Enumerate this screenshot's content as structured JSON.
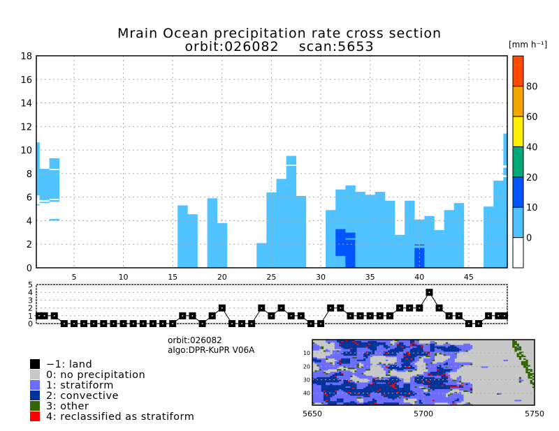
{
  "title": {
    "line1": "Mrain Ocean precipitation rate cross section",
    "line2": "orbit:026082    scan:5653"
  },
  "colorbar": {
    "unit": "[mm h⁻¹]",
    "bins": [
      {
        "from": null,
        "to": 0,
        "color": "#FFFFFF"
      },
      {
        "from": 0,
        "to": 10,
        "color": "#4FC3FF"
      },
      {
        "from": 10,
        "to": 20,
        "color": "#0055FF"
      },
      {
        "from": 20,
        "to": 40,
        "color": "#00AA77"
      },
      {
        "from": 40,
        "to": 60,
        "color": "#FFEE00"
      },
      {
        "from": 60,
        "to": 80,
        "color": "#F5A500"
      },
      {
        "from": 80,
        "to": null,
        "color": "#FF4A00"
      }
    ],
    "labels": [
      "0",
      "10",
      "20",
      "40",
      "60",
      "80"
    ]
  },
  "chart_data": [
    {
      "type": "bar",
      "description_of_encoding": "segments are [bottom, top, rate-bin lower bound in mm/h]",
      "xlim": [
        1.18,
        48.9
      ],
      "ylim": [
        0,
        18
      ],
      "xticks": [
        "5",
        "10",
        "15",
        "20",
        "25",
        "30",
        "35",
        "40",
        "45"
      ],
      "yticks": [
        "0",
        "2",
        "4",
        "6",
        "8",
        "10",
        "12",
        "14",
        "16",
        "18"
      ],
      "grid": true,
      "columns": [
        {
          "x": 1,
          "segments": [
            [
              5.3,
              5.4,
              0
            ],
            [
              6.15,
              10.65,
              0
            ]
          ]
        },
        {
          "x": 2,
          "segments": [
            [
              5.5,
              5.6,
              0
            ],
            [
              5.75,
              8.4,
              0
            ]
          ]
        },
        {
          "x": 3,
          "segments": [
            [
              4.0,
              4.15,
              0
            ],
            [
              5.6,
              5.75,
              0
            ],
            [
              5.85,
              8.3,
              0
            ],
            [
              8.4,
              9.3,
              0
            ]
          ]
        },
        {
          "x": 16,
          "segments": [
            [
              0,
              5.3,
              0
            ]
          ]
        },
        {
          "x": 17,
          "segments": [
            [
              0,
              4.55,
              0
            ]
          ]
        },
        {
          "x": 19,
          "segments": [
            [
              0,
              5.9,
              0
            ]
          ]
        },
        {
          "x": 20,
          "segments": [
            [
              0,
              3.8,
              0
            ]
          ]
        },
        {
          "x": 24,
          "segments": [
            [
              0,
              2.1,
              0
            ]
          ]
        },
        {
          "x": 25,
          "segments": [
            [
              0,
              6.4,
              0
            ]
          ]
        },
        {
          "x": 26,
          "segments": [
            [
              0,
              7.55,
              0
            ]
          ]
        },
        {
          "x": 27,
          "segments": [
            [
              0,
              8.65,
              0
            ],
            [
              8.75,
              9.5,
              0
            ]
          ]
        },
        {
          "x": 28,
          "segments": [
            [
              0,
              6.1,
              0
            ]
          ]
        },
        {
          "x": 31,
          "segments": [
            [
              0,
              4.9,
              0
            ]
          ]
        },
        {
          "x": 32,
          "segments": [
            [
              0,
              1.0,
              0
            ],
            [
              1.0,
              3.3,
              10
            ],
            [
              3.3,
              6.65,
              0
            ]
          ]
        },
        {
          "x": 33,
          "segments": [
            [
              0,
              2.4,
              10
            ],
            [
              2.4,
              2.5,
              0
            ],
            [
              2.5,
              3.0,
              10
            ],
            [
              3.0,
              7.0,
              0
            ]
          ]
        },
        {
          "x": 34,
          "segments": [
            [
              0,
              6.45,
              0
            ]
          ]
        },
        {
          "x": 35,
          "segments": [
            [
              0,
              6.2,
              0
            ]
          ]
        },
        {
          "x": 36,
          "segments": [
            [
              0,
              6.45,
              0
            ]
          ]
        },
        {
          "x": 37,
          "segments": [
            [
              0,
              5.7,
              0
            ]
          ]
        },
        {
          "x": 38,
          "segments": [
            [
              0,
              2.8,
              0
            ]
          ]
        },
        {
          "x": 39,
          "segments": [
            [
              0,
              5.7,
              0
            ]
          ]
        },
        {
          "x": 40,
          "segments": [
            [
              0,
              1.7,
              10
            ],
            [
              1.7,
              1.9,
              0
            ],
            [
              1.9,
              2.0,
              10
            ],
            [
              2.0,
              4.1,
              0
            ]
          ]
        },
        {
          "x": 41,
          "segments": [
            [
              0,
              4.4,
              0
            ]
          ]
        },
        {
          "x": 42,
          "segments": [
            [
              0,
              3.2,
              0
            ]
          ]
        },
        {
          "x": 43,
          "segments": [
            [
              0,
              4.9,
              0
            ]
          ]
        },
        {
          "x": 44,
          "segments": [
            [
              0,
              5.5,
              0
            ]
          ]
        },
        {
          "x": 47,
          "segments": [
            [
              0,
              5.2,
              0
            ]
          ]
        },
        {
          "x": 48,
          "segments": [
            [
              0,
              7.4,
              0
            ]
          ]
        },
        {
          "x": 49,
          "segments": [
            [
              0,
              7.7,
              0
            ],
            [
              7.85,
              8.5,
              0
            ],
            [
              8.7,
              11.4,
              0
            ]
          ]
        }
      ]
    },
    {
      "type": "line",
      "xlim": [
        1.18,
        48.9
      ],
      "ylim": [
        0,
        5
      ],
      "yticks": [
        "0",
        "1",
        "2",
        "3",
        "4",
        "5"
      ],
      "grid": true,
      "x": [
        1,
        2,
        3,
        4,
        5,
        6,
        7,
        8,
        9,
        10,
        11,
        12,
        13,
        14,
        15,
        16,
        17,
        18,
        19,
        20,
        21,
        22,
        23,
        24,
        25,
        26,
        27,
        28,
        29,
        30,
        31,
        32,
        33,
        34,
        35,
        36,
        37,
        38,
        39,
        40,
        41,
        42,
        43,
        44,
        45,
        46,
        47,
        48,
        49
      ],
      "y": [
        1,
        1,
        1,
        0,
        0,
        0,
        0,
        0,
        0,
        0,
        0,
        0,
        0,
        0,
        0,
        1,
        1,
        0,
        1,
        2,
        0,
        0,
        0,
        2,
        1,
        2,
        1,
        1,
        0,
        0,
        2,
        2,
        1,
        1,
        1,
        1,
        1,
        2,
        2,
        2,
        4,
        2,
        1,
        1,
        0,
        0,
        1,
        1,
        1
      ]
    }
  ],
  "info": {
    "orbit": "orbit:026082",
    "algo": "algo:DPR-KuPR V06A"
  },
  "legend": [
    {
      "label": "−1: land",
      "color": "#000000"
    },
    {
      "label": "0: no precipitation",
      "color": "#C8C8C8"
    },
    {
      "label": "1: stratiform",
      "color": "#6C6CFF"
    },
    {
      "label": "2: convective",
      "color": "#003399"
    },
    {
      "label": "3: other",
      "color": "#336600"
    },
    {
      "label": "4: reclassified as stratiform",
      "color": "#FF0000"
    }
  ],
  "map": {
    "yticks": [
      "10",
      "20",
      "30",
      "40"
    ],
    "xticks": [
      "5650",
      "5700",
      "5750"
    ]
  }
}
